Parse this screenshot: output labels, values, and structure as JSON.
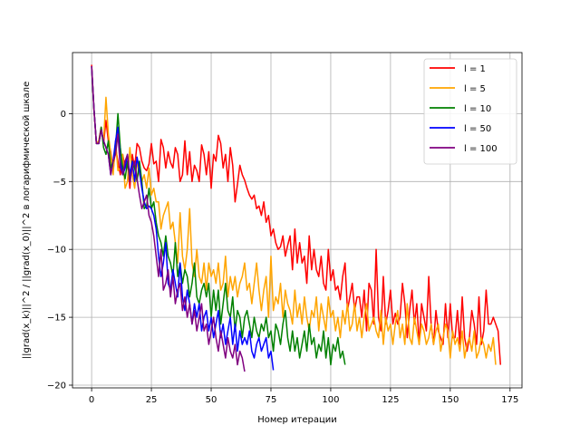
{
  "chart_data": {
    "type": "line",
    "xlabel": "Номер итерации",
    "ylabel": "||grad(x_k)||^2 / ||grad(x_0)||^2 в логарифмической шкале",
    "xlim": [
      -8,
      180
    ],
    "ylim": [
      -20.2,
      4.5
    ],
    "xticks": [
      0,
      25,
      50,
      75,
      100,
      125,
      150,
      175
    ],
    "yticks": [
      0,
      -5,
      -10,
      -15,
      -20
    ],
    "grid": true,
    "legend_position": "top-right",
    "series": [
      {
        "name": "l = 1",
        "color": "#ff0000",
        "x": [
          0,
          1,
          2,
          3,
          4,
          5,
          6,
          7,
          8,
          9,
          10,
          11,
          12,
          13,
          14,
          15,
          16,
          17,
          18,
          19,
          20,
          21,
          22,
          23,
          24,
          25,
          26,
          27,
          28,
          29,
          30,
          31,
          32,
          33,
          34,
          35,
          36,
          37,
          38,
          39,
          40,
          41,
          42,
          43,
          44,
          45,
          46,
          47,
          48,
          49,
          50,
          51,
          52,
          53,
          54,
          55,
          56,
          57,
          58,
          59,
          60,
          61,
          62,
          63,
          64,
          65,
          66,
          67,
          68,
          69,
          70,
          71,
          72,
          73,
          74,
          75,
          76,
          77,
          78,
          79,
          80,
          81,
          82,
          83,
          84,
          85,
          86,
          87,
          88,
          89,
          90,
          91,
          92,
          93,
          94,
          95,
          96,
          97,
          98,
          99,
          100,
          101,
          102,
          103,
          104,
          105,
          106,
          107,
          108,
          109,
          110,
          111,
          112,
          113,
          114,
          115,
          116,
          117,
          118,
          119,
          120,
          121,
          122,
          123,
          124,
          125,
          126,
          127,
          128,
          129,
          130,
          131,
          132,
          133,
          134,
          135,
          136,
          137,
          138,
          139,
          140,
          141,
          142,
          143,
          144,
          145,
          146,
          147,
          148,
          149,
          150,
          151,
          152,
          153,
          154,
          155,
          156,
          157,
          158,
          159,
          160,
          161,
          162,
          163,
          164,
          165,
          166,
          167,
          168,
          169,
          170,
          171
        ],
        "values": [
          3.6,
          0.2,
          -2.2,
          -2.0,
          -1.0,
          -2.2,
          -0.5,
          -2.0,
          -2.8,
          -4.2,
          -2.5,
          -3.5,
          -4.5,
          -3.0,
          -4.0,
          -3.6,
          -5.5,
          -3.0,
          -4.0,
          -2.2,
          -2.5,
          -3.5,
          -4.0,
          -4.2,
          -3.7,
          -2.2,
          -3.7,
          -3.5,
          -5.0,
          -1.9,
          -2.5,
          -4.0,
          -2.8,
          -3.6,
          -4.0,
          -2.5,
          -3.0,
          -5.0,
          -4.5,
          -2.0,
          -4.5,
          -2.8,
          -5.0,
          -3.8,
          -4.2,
          -5.0,
          -2.3,
          -3.0,
          -4.5,
          -2.8,
          -5.5,
          -3.0,
          -3.5,
          -1.6,
          -2.2,
          -4.0,
          -3.0,
          -5.0,
          -2.5,
          -3.8,
          -6.5,
          -5.2,
          -3.8,
          -4.5,
          -4.9,
          -5.5,
          -6.0,
          -6.3,
          -6.0,
          -7.0,
          -6.8,
          -7.5,
          -6.5,
          -8.0,
          -7.5,
          -9.0,
          -8.5,
          -9.5,
          -10.0,
          -9.8,
          -9.0,
          -10.5,
          -9.7,
          -9.0,
          -11.5,
          -8.5,
          -11.0,
          -9.5,
          -11.0,
          -10.5,
          -12.5,
          -9.0,
          -11.5,
          -10.0,
          -11.5,
          -12.0,
          -10.5,
          -12.5,
          -13.0,
          -10.0,
          -12.3,
          -11.5,
          -13.0,
          -12.7,
          -13.7,
          -12.0,
          -11.0,
          -14.5,
          -13.5,
          -12.5,
          -14.5,
          -13.5,
          -13.5,
          -15.0,
          -13.0,
          -16.0,
          -12.5,
          -13.0,
          -15.5,
          -10.0,
          -15.0,
          -16.0,
          -12.0,
          -15.5,
          -14.5,
          -13.0,
          -15.5,
          -14.7,
          -15.5,
          -15.0,
          -12.5,
          -14.0,
          -16.5,
          -14.5,
          -13.0,
          -15.5,
          -14.0,
          -17.0,
          -14.0,
          -15.0,
          -16.0,
          -12.0,
          -15.5,
          -17.0,
          -14.5,
          -16.0,
          -16.5,
          -17.0,
          -14.0,
          -16.5,
          -14.0,
          -16.5,
          -16.5,
          -14.5,
          -17.0,
          -13.5,
          -16.5,
          -17.5,
          -16.5,
          -14.5,
          -15.5,
          -17.0,
          -13.5,
          -17.0,
          -16.0,
          -13.0,
          -15.5,
          -15.5,
          -15.0,
          -15.5,
          -16.0,
          -18.5
        ]
      },
      {
        "name": "l = 5",
        "color": "#ffa500",
        "x": [
          0,
          1,
          2,
          3,
          4,
          5,
          6,
          7,
          8,
          9,
          10,
          11,
          12,
          13,
          14,
          15,
          16,
          17,
          18,
          19,
          20,
          21,
          22,
          23,
          24,
          25,
          26,
          27,
          28,
          29,
          30,
          31,
          32,
          33,
          34,
          35,
          36,
          37,
          38,
          39,
          40,
          41,
          42,
          43,
          44,
          45,
          46,
          47,
          48,
          49,
          50,
          51,
          52,
          53,
          54,
          55,
          56,
          57,
          58,
          59,
          60,
          61,
          62,
          63,
          64,
          65,
          66,
          67,
          68,
          69,
          70,
          71,
          72,
          73,
          74,
          75,
          76,
          77,
          78,
          79,
          80,
          81,
          82,
          83,
          84,
          85,
          86,
          87,
          88,
          89,
          90,
          91,
          92,
          93,
          94,
          95,
          96,
          97,
          98,
          99,
          100,
          101,
          102,
          103,
          104,
          105,
          106,
          107,
          108,
          109,
          110,
          111,
          112,
          113,
          114,
          115,
          116,
          117,
          118,
          119,
          120,
          121,
          122,
          123,
          124,
          125,
          126,
          127,
          128,
          129,
          130,
          131,
          132,
          133,
          134,
          135,
          136,
          137,
          138,
          139,
          140,
          141,
          142,
          143,
          144,
          145,
          146,
          147,
          148,
          149,
          150,
          151,
          152,
          153,
          154,
          155,
          156,
          157,
          158,
          159,
          160,
          161,
          162,
          163,
          164,
          165,
          166,
          167,
          168,
          169
        ],
        "values": [
          3.5,
          0.3,
          -2.2,
          -2.0,
          -1.2,
          -2.0,
          1.2,
          -1.5,
          -3.0,
          -4.5,
          -2.0,
          -4.2,
          -4.0,
          -3.0,
          -5.5,
          -5.0,
          -2.5,
          -4.5,
          -5.5,
          -3.5,
          -4.5,
          -5.0,
          -4.5,
          -5.5,
          -4.0,
          -6.0,
          -5.5,
          -6.5,
          -6.5,
          -8.5,
          -7.5,
          -7.0,
          -6.5,
          -8.5,
          -8.0,
          -9.5,
          -11.0,
          -7.3,
          -10.5,
          -11.5,
          -10.0,
          -7.0,
          -11.0,
          -12.0,
          -10.0,
          -12.0,
          -12.5,
          -11.0,
          -13.0,
          -11.0,
          -12.0,
          -11.5,
          -12.5,
          -11.0,
          -13.0,
          -12.5,
          -10.5,
          -13.5,
          -12.0,
          -13.0,
          -12.0,
          -13.5,
          -12.5,
          -12.0,
          -11.0,
          -13.0,
          -12.5,
          -14.0,
          -12.5,
          -11.0,
          -13.0,
          -14.5,
          -13.0,
          -12.0,
          -15.0,
          -10.5,
          -14.5,
          -13.5,
          -14.0,
          -12.5,
          -15.0,
          -13.0,
          -14.0,
          -14.5,
          -15.5,
          -13.0,
          -15.0,
          -14.0,
          -15.5,
          -13.5,
          -15.0,
          -16.0,
          -14.5,
          -15.0,
          -13.5,
          -16.0,
          -14.0,
          -15.0,
          -16.0,
          -13.5,
          -15.0,
          -14.5,
          -16.0,
          -15.0,
          -16.5,
          -14.5,
          -15.5,
          -14.0,
          -16.0,
          -15.5,
          -14.0,
          -16.0,
          -15.0,
          -16.5,
          -15.0,
          -14.0,
          -16.0,
          -15.5,
          -15.0,
          -16.0,
          -16.5,
          -14.5,
          -17.0,
          -15.0,
          -16.0,
          -15.5,
          -17.0,
          -15.5,
          -14.5,
          -16.5,
          -15.5,
          -17.0,
          -14.0,
          -16.5,
          -17.0,
          -15.0,
          -16.0,
          -17.0,
          -15.5,
          -16.0,
          -17.0,
          -16.5,
          -15.5,
          -17.0,
          -16.0,
          -15.5,
          -17.5,
          -16.5,
          -15.5,
          -16.0,
          -18.0,
          -16.0,
          -17.0,
          -16.5,
          -17.5,
          -16.0,
          -18.0,
          -17.0,
          -16.5,
          -17.5,
          -16.0,
          -18.0,
          -17.5,
          -16.5,
          -17.0,
          -18.0,
          -17.0,
          -17.5,
          -16.5,
          -18.5
        ]
      },
      {
        "name": "l = 10",
        "color": "#008000",
        "x": [
          0,
          1,
          2,
          3,
          4,
          5,
          6,
          7,
          8,
          9,
          10,
          11,
          12,
          13,
          14,
          15,
          16,
          17,
          18,
          19,
          20,
          21,
          22,
          23,
          24,
          25,
          26,
          27,
          28,
          29,
          30,
          31,
          32,
          33,
          34,
          35,
          36,
          37,
          38,
          39,
          40,
          41,
          42,
          43,
          44,
          45,
          46,
          47,
          48,
          49,
          50,
          51,
          52,
          53,
          54,
          55,
          56,
          57,
          58,
          59,
          60,
          61,
          62,
          63,
          64,
          65,
          66,
          67,
          68,
          69,
          70,
          71,
          72,
          73,
          74,
          75,
          76,
          77,
          78,
          79,
          80,
          81,
          82,
          83,
          84,
          85,
          86,
          87,
          88,
          89,
          90,
          91,
          92,
          93,
          94,
          95,
          96,
          97,
          98,
          99,
          100,
          101,
          102,
          103,
          104,
          105,
          106
        ],
        "values": [
          3.4,
          0.3,
          -2.2,
          -2.2,
          -1.0,
          -2.5,
          -3.0,
          -2.0,
          -4.0,
          -3.5,
          -2.5,
          0.0,
          -2.5,
          -4.0,
          -4.8,
          -3.5,
          -5.0,
          -3.5,
          -4.0,
          -5.0,
          -3.5,
          -5.0,
          -7.0,
          -6.8,
          -5.5,
          -7.0,
          -6.5,
          -8.0,
          -9.0,
          -9.5,
          -10.5,
          -9.0,
          -10.5,
          -11.0,
          -12.0,
          -9.5,
          -12.0,
          -11.0,
          -12.5,
          -11.5,
          -12.0,
          -13.5,
          -12.5,
          -11.0,
          -13.5,
          -14.0,
          -13.0,
          -12.5,
          -13.5,
          -12.5,
          -15.0,
          -13.0,
          -14.5,
          -13.0,
          -15.5,
          -14.0,
          -12.5,
          -14.5,
          -15.0,
          -13.5,
          -16.0,
          -14.5,
          -15.0,
          -16.5,
          -15.0,
          -14.5,
          -15.5,
          -16.5,
          -15.0,
          -16.0,
          -16.5,
          -15.5,
          -16.0,
          -15.0,
          -16.5,
          -16.0,
          -17.5,
          -15.5,
          -16.0,
          -17.0,
          -15.5,
          -14.5,
          -16.5,
          -17.5,
          -16.0,
          -17.5,
          -16.5,
          -18.0,
          -17.0,
          -16.0,
          -17.5,
          -15.5,
          -17.0,
          -16.5,
          -18.0,
          -17.0,
          -17.5,
          -16.0,
          -18.0,
          -16.5,
          -18.5,
          -17.0,
          -17.5,
          -16.5,
          -18.0,
          -17.5,
          -18.5
        ]
      },
      {
        "name": "l = 50",
        "color": "#0000ff",
        "x": [
          0,
          1,
          2,
          3,
          4,
          5,
          6,
          7,
          8,
          9,
          10,
          11,
          12,
          13,
          14,
          15,
          16,
          17,
          18,
          19,
          20,
          21,
          22,
          23,
          24,
          25,
          26,
          27,
          28,
          29,
          30,
          31,
          32,
          33,
          34,
          35,
          36,
          37,
          38,
          39,
          40,
          41,
          42,
          43,
          44,
          45,
          46,
          47,
          48,
          49,
          50,
          51,
          52,
          53,
          54,
          55,
          56,
          57,
          58,
          59,
          60,
          61,
          62,
          63,
          64,
          65,
          66,
          67,
          68,
          69,
          70,
          71,
          72,
          73,
          74,
          75,
          76
        ],
        "values": [
          3.5,
          0.3,
          -2.2,
          -2.2,
          -1.2,
          -2.0,
          -2.5,
          -3.0,
          -4.5,
          -3.5,
          -2.0,
          -1.0,
          -3.5,
          -4.5,
          -4.0,
          -3.0,
          -4.5,
          -3.5,
          -5.0,
          -3.2,
          -4.2,
          -5.5,
          -6.5,
          -7.0,
          -6.8,
          -7.0,
          -7.5,
          -8.5,
          -10.5,
          -12.0,
          -11.0,
          -9.5,
          -12.5,
          -13.0,
          -11.5,
          -12.5,
          -13.5,
          -11.0,
          -13.5,
          -14.5,
          -13.0,
          -14.0,
          -15.5,
          -14.0,
          -15.0,
          -14.0,
          -16.0,
          -15.0,
          -14.5,
          -16.0,
          -15.0,
          -16.5,
          -15.5,
          -14.5,
          -16.5,
          -15.5,
          -17.0,
          -16.0,
          -15.0,
          -17.0,
          -15.5,
          -17.5,
          -16.0,
          -17.0,
          -16.5,
          -17.0,
          -16.0,
          -17.5,
          -18.0,
          -17.0,
          -16.5,
          -17.5,
          -17.0,
          -16.5,
          -18.0,
          -17.5,
          -18.9
        ]
      },
      {
        "name": "l = 100",
        "color": "#800080",
        "x": [
          0,
          1,
          2,
          3,
          4,
          5,
          6,
          7,
          8,
          9,
          10,
          11,
          12,
          13,
          14,
          15,
          16,
          17,
          18,
          19,
          20,
          21,
          22,
          23,
          24,
          25,
          26,
          27,
          28,
          29,
          30,
          31,
          32,
          33,
          34,
          35,
          36,
          37,
          38,
          39,
          40,
          41,
          42,
          43,
          44,
          45,
          46,
          47,
          48,
          49,
          50,
          51,
          52,
          53,
          54,
          55,
          56,
          57,
          58,
          59,
          60,
          61,
          62,
          63,
          64
        ],
        "values": [
          3.5,
          0.3,
          -2.2,
          -2.2,
          -1.2,
          -2.0,
          -2.5,
          -3.0,
          -4.5,
          -3.5,
          -3.0,
          -1.5,
          -4.0,
          -4.5,
          -3.5,
          -3.0,
          -5.0,
          -4.0,
          -3.5,
          -4.8,
          -6.0,
          -7.0,
          -6.5,
          -6.0,
          -7.5,
          -8.0,
          -9.0,
          -10.5,
          -12.0,
          -10.0,
          -13.0,
          -12.5,
          -11.5,
          -13.5,
          -12.0,
          -14.0,
          -13.0,
          -12.5,
          -14.5,
          -13.5,
          -15.0,
          -14.0,
          -15.5,
          -14.5,
          -16.0,
          -15.0,
          -14.0,
          -16.0,
          -15.5,
          -17.0,
          -16.0,
          -15.0,
          -16.5,
          -17.5,
          -16.0,
          -17.0,
          -18.0,
          -16.5,
          -17.5,
          -18.0,
          -17.0,
          -18.5,
          -17.5,
          -18.0,
          -19.0
        ]
      }
    ]
  }
}
